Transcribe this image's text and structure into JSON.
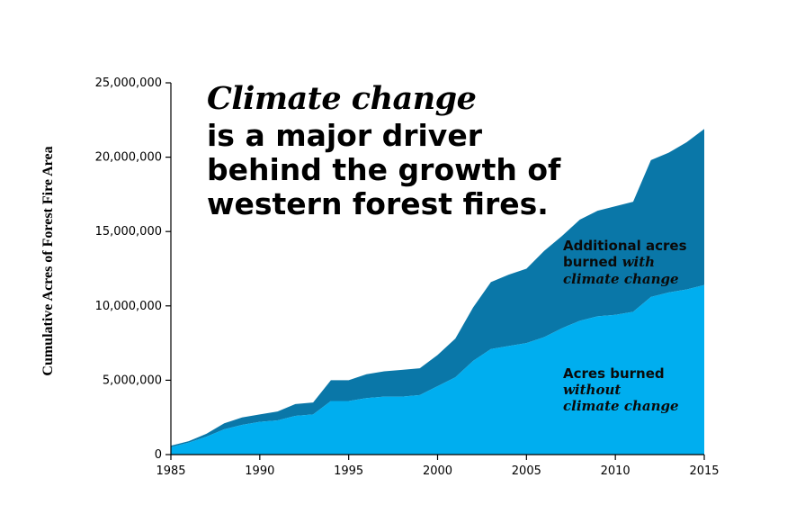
{
  "title": {
    "line1": "Climate change",
    "line2": "is a major driver",
    "line3": "behind the growth of",
    "line4": "western forest fires."
  },
  "ylabel": "Cumulative Acres of Forest Fire Area",
  "annotations": {
    "with": {
      "line1": "Additional acres",
      "line2_prefix": "burned ",
      "line2_em": "with",
      "line3": "climate change"
    },
    "without": {
      "line1": "Acres burned",
      "line2": "without",
      "line3": "climate change"
    }
  },
  "colors": {
    "with_climate_change": "#0a77a8",
    "without_climate_change": "#00aeef"
  },
  "chart_data": {
    "type": "area",
    "title": "Climate change is a major driver behind the growth of western forest fires.",
    "xlabel": "",
    "ylabel": "Cumulative Acres of Forest Fire Area",
    "xlim": [
      1985,
      2015
    ],
    "ylim": [
      0,
      25000000
    ],
    "x": [
      1985,
      1986,
      1987,
      1988,
      1989,
      1990,
      1991,
      1992,
      1993,
      1994,
      1995,
      1996,
      1997,
      1998,
      1999,
      2000,
      2001,
      2002,
      2003,
      2004,
      2005,
      2006,
      2007,
      2008,
      2009,
      2010,
      2011,
      2012,
      2013,
      2014,
      2015
    ],
    "x_ticks": [
      "1985",
      "1990",
      "1995",
      "2000",
      "2005",
      "2010",
      "2015"
    ],
    "y_ticks": [
      "0",
      "5,000,000",
      "10,000,000",
      "15,000,000",
      "20,000,000",
      "25,000,000"
    ],
    "stacked": true,
    "series": [
      {
        "name": "Acres burned without climate change",
        "values": [
          500000,
          800000,
          1200000,
          1700000,
          2000000,
          2200000,
          2300000,
          2600000,
          2700000,
          3600000,
          3600000,
          3800000,
          3900000,
          3900000,
          4000000,
          4600000,
          5200000,
          6300000,
          7100000,
          7300000,
          7500000,
          7900000,
          8500000,
          9000000,
          9300000,
          9400000,
          9600000,
          10600000,
          10900000,
          11100000,
          11400000
        ]
      },
      {
        "name": "Additional acres burned with climate change",
        "values": [
          100000,
          100000,
          200000,
          400000,
          500000,
          500000,
          600000,
          800000,
          800000,
          1400000,
          1400000,
          1600000,
          1700000,
          1800000,
          1800000,
          2100000,
          2600000,
          3600000,
          4500000,
          4800000,
          5000000,
          5800000,
          6200000,
          6800000,
          7100000,
          7300000,
          7400000,
          9200000,
          9400000,
          9900000,
          10500000
        ]
      }
    ],
    "grid": false,
    "legend": "none"
  }
}
